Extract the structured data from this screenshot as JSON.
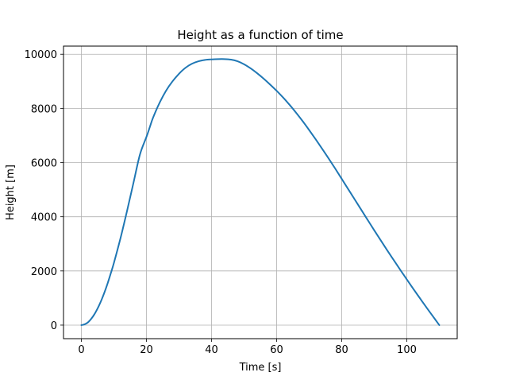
{
  "chart_data": {
    "type": "line",
    "title": "Height as a function of time",
    "xlabel": "Time [s]",
    "ylabel": "Height [m]",
    "xlim": [
      -5.5,
      115.5
    ],
    "ylim": [
      -500,
      10300
    ],
    "xticks": [
      0,
      20,
      40,
      60,
      80,
      100
    ],
    "yticks": [
      0,
      2000,
      4000,
      6000,
      8000,
      10000
    ],
    "grid": true,
    "legend": "none",
    "series": [
      {
        "color": "#1f77b4",
        "x": [
          0,
          1,
          2,
          3,
          4,
          5,
          6,
          7,
          8,
          9,
          10,
          12,
          14,
          16,
          18,
          20,
          21,
          22,
          24,
          26,
          28,
          30,
          32,
          34,
          36,
          38,
          40,
          42,
          44,
          46,
          48,
          50,
          52,
          54,
          56,
          58,
          60,
          62,
          64,
          66,
          68,
          70,
          72,
          74,
          76,
          78,
          80,
          82,
          84,
          86,
          88,
          90,
          92,
          94,
          96,
          98,
          100,
          102,
          104,
          106,
          108,
          110
        ],
        "y": [
          0,
          30,
          100,
          230,
          400,
          620,
          880,
          1180,
          1520,
          1900,
          2300,
          3200,
          4200,
          5250,
          6300,
          6950,
          7300,
          7650,
          8200,
          8650,
          9000,
          9280,
          9500,
          9650,
          9740,
          9790,
          9810,
          9820,
          9820,
          9800,
          9740,
          9630,
          9480,
          9300,
          9100,
          8880,
          8650,
          8400,
          8130,
          7840,
          7530,
          7200,
          6860,
          6510,
          6150,
          5780,
          5400,
          5020,
          4640,
          4260,
          3880,
          3500,
          3130,
          2760,
          2400,
          2040,
          1690,
          1340,
          1000,
          660,
          330,
          0
        ]
      }
    ]
  }
}
